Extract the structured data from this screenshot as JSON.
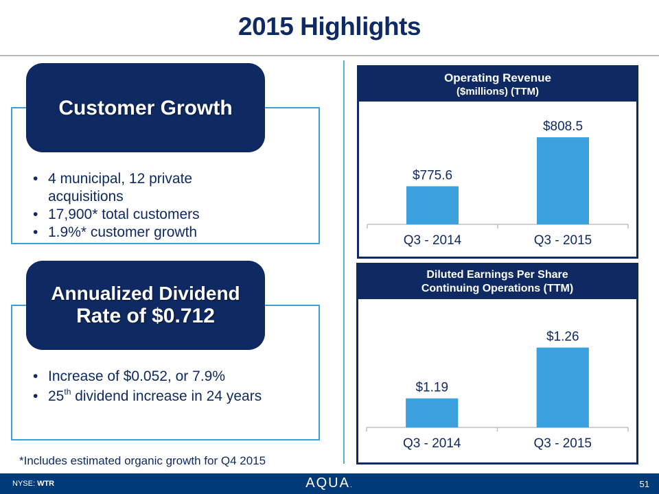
{
  "title": "2015 Highlights",
  "left_panels": [
    {
      "header": "Customer Growth",
      "bullets": [
        {
          "text": "4 municipal, 12 private acquisitions"
        },
        {
          "text": "17,900* total customers"
        },
        {
          "text": "1.9%* customer growth"
        }
      ]
    },
    {
      "header_line1": "Annualized Dividend",
      "header_line2": "Rate of $0.712",
      "bullets": [
        {
          "text": "Increase of $0.052, or 7.9%"
        },
        {
          "pre": "25",
          "sup": "th",
          "post": " dividend increase in 24 years"
        }
      ]
    }
  ],
  "footnote": "*Includes estimated organic growth for Q4 2015",
  "footer": {
    "ticker_prefix": "NYSE: ",
    "ticker": "WTR",
    "logo": "AQUA",
    "logo_mark": ".",
    "page_number": "51"
  },
  "colors": {
    "navy": "#0f2a63",
    "bar": "#3aa0de",
    "outline": "#3aa3d6",
    "footer": "#003a78"
  },
  "chart_data": [
    {
      "type": "bar",
      "title": "Operating Revenue",
      "subtitle": "($millions) (TTM)",
      "categories": [
        "Q3 - 2014",
        "Q3 - 2015"
      ],
      "values": [
        775.6,
        808.5
      ],
      "data_labels": [
        "$775.6",
        "$808.5"
      ],
      "xlabel": "",
      "ylabel": "",
      "ylim": [
        750,
        815
      ],
      "grid": false,
      "legend": "none"
    },
    {
      "type": "bar",
      "title": "Diluted Earnings Per Share",
      "subtitle": "Continuing Operations (TTM)",
      "categories": [
        "Q3 - 2014",
        "Q3 - 2015"
      ],
      "values": [
        1.19,
        1.26
      ],
      "data_labels": [
        "$1.19",
        "$1.26"
      ],
      "xlabel": "",
      "ylabel": "",
      "ylim": [
        1.15,
        1.27
      ],
      "grid": false,
      "legend": "none"
    }
  ]
}
